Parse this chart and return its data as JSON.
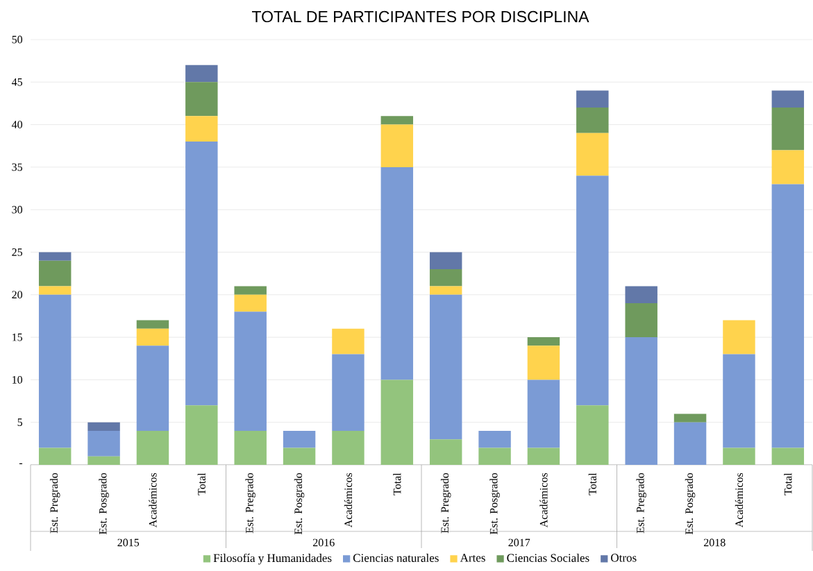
{
  "chart_data": {
    "type": "bar",
    "stacked": true,
    "title": "TOTAL DE PARTICIPANTES POR DISCIPLINA",
    "categories": [
      "Est. Pregrado",
      "Est. Posgrado",
      "Académicos",
      "Total",
      "Est. Pregrado",
      "Est. Posgrado",
      "Académicos",
      "Total",
      "Est. Pregrado",
      "Est. Posgrado",
      "Académicos",
      "Total",
      "Est. Pregrado",
      "Est. Posgrado",
      "Académicos",
      "Total"
    ],
    "annotations": [
      "2015",
      "2016",
      "2017",
      "2018"
    ],
    "series": [
      {
        "name": "Filosofía y Humanidades",
        "color": "#93c47d",
        "values": [
          2,
          1,
          4,
          7,
          4,
          2,
          4,
          10,
          3,
          2,
          2,
          7,
          0,
          0,
          2,
          2
        ]
      },
      {
        "name": "Ciencias naturales",
        "color": "#7b9bd5",
        "values": [
          18,
          3,
          10,
          31,
          14,
          2,
          9,
          25,
          17,
          2,
          8,
          27,
          15,
          5,
          11,
          31
        ]
      },
      {
        "name": "Artes",
        "color": "#ffd34d",
        "values": [
          1,
          0,
          2,
          3,
          2,
          0,
          3,
          5,
          1,
          0,
          4,
          5,
          0,
          0,
          4,
          4
        ]
      },
      {
        "name": "Ciencias Sociales",
        "color": "#6f9a5d",
        "values": [
          3,
          0,
          1,
          4,
          1,
          0,
          0,
          1,
          2,
          0,
          1,
          3,
          4,
          1,
          0,
          5
        ]
      },
      {
        "name": "Otros",
        "color": "#6278a8",
        "values": [
          1,
          1,
          0,
          2,
          0,
          0,
          0,
          0,
          2,
          0,
          0,
          2,
          2,
          0,
          0,
          2
        ]
      }
    ],
    "ylim": [
      0,
      50
    ],
    "yticks": [
      {
        "value": 0,
        "label": "-"
      },
      5,
      10,
      15,
      20,
      25,
      30,
      35,
      40,
      45,
      50
    ],
    "grid": "y",
    "legend": "bottom"
  }
}
